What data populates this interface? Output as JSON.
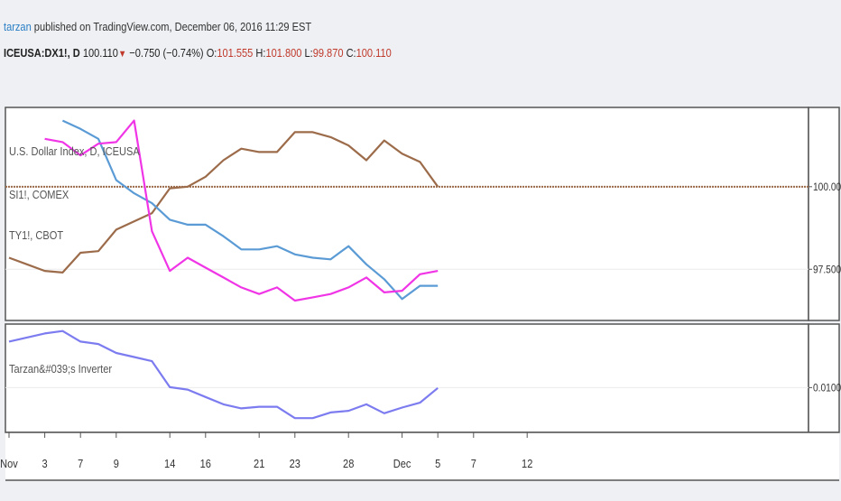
{
  "header": {
    "author": "tarzan",
    "published": "published on TradingView.com, December 06, 2016 11:29 EST",
    "symbol": "ICEUSA:DX1!, D",
    "last": "100.110",
    "change": "−0.750 (−0.74%)",
    "o_label": "O:",
    "o_val": "101.555",
    "h_label": "H:",
    "h_val": "101.800",
    "l_label": "L:",
    "l_val": "99.870",
    "c_label": "C:",
    "c_val": "100.110"
  },
  "legend": {
    "s1": "U.S. Dollar Index, D, ICEUSA",
    "s2": "SI1!, COMEX",
    "s3": "TY1!, CBOT",
    "ind": "Tarzan&#039;s Inverter"
  },
  "colors": {
    "dollar": "#f035e6",
    "silver": "#5b9bd5",
    "treasury": "#9c6b4a",
    "inverter": "#7c7cf0",
    "refline": "#9c6b4a"
  },
  "chart_data": [
    {
      "type": "line",
      "panel": "main",
      "x": [
        "Oct 31",
        "Nov 1",
        "Nov 2",
        "Nov 3",
        "Nov 4",
        "Nov 7",
        "Nov 8",
        "Nov 9",
        "Nov 10",
        "Nov 11",
        "Nov 14",
        "Nov 15",
        "Nov 16",
        "Nov 17",
        "Nov 18",
        "Nov 21",
        "Nov 22",
        "Nov 23",
        "Nov 24",
        "Nov 25",
        "Nov 28",
        "Nov 29",
        "Nov 30",
        "Dec 1",
        "Dec 2",
        "Dec 5"
      ],
      "y_ticks": [
        "100.000",
        "97.500"
      ],
      "ylim": [
        95.95,
        102.4
      ],
      "ref_line": 100.0,
      "series": [
        {
          "name": "U.S. Dollar Index, D, ICEUSA",
          "values": [
            null,
            null,
            101.45,
            101.35,
            100.95,
            101.3,
            101.35,
            102.0,
            98.65,
            97.45,
            97.85,
            97.55,
            97.25,
            96.95,
            96.75,
            96.95,
            96.55,
            96.65,
            96.75,
            96.95,
            97.25,
            96.8,
            96.85,
            97.35,
            97.45,
            null
          ]
        },
        {
          "name": "SI1!, COMEX",
          "values": [
            null,
            null,
            null,
            102.0,
            101.75,
            101.45,
            100.2,
            99.8,
            99.5,
            99.0,
            98.85,
            98.85,
            98.5,
            98.1,
            98.1,
            98.2,
            97.95,
            97.85,
            97.8,
            98.2,
            97.65,
            97.2,
            96.6,
            97.0,
            97.0,
            null
          ]
        },
        {
          "name": "TY1!, CBOT",
          "values": [
            97.85,
            97.65,
            97.45,
            97.4,
            98.0,
            98.05,
            98.7,
            98.95,
            99.2,
            99.95,
            100.0,
            100.3,
            100.8,
            101.15,
            101.05,
            101.05,
            101.65,
            101.65,
            101.5,
            101.25,
            100.8,
            101.4,
            101.0,
            100.75,
            100.0,
            null
          ]
        }
      ]
    },
    {
      "type": "line",
      "panel": "indicator",
      "x": [
        "Oct 31",
        "Nov 1",
        "Nov 2",
        "Nov 3",
        "Nov 4",
        "Nov 7",
        "Nov 8",
        "Nov 9",
        "Nov 10",
        "Nov 11",
        "Nov 14",
        "Nov 15",
        "Nov 16",
        "Nov 17",
        "Nov 18",
        "Nov 21",
        "Nov 22",
        "Nov 23",
        "Nov 24",
        "Nov 25",
        "Nov 28",
        "Nov 29",
        "Nov 30",
        "Dec 1",
        "Dec 2",
        "Dec 5"
      ],
      "y_ticks": [
        "0.0100"
      ],
      "series": [
        {
          "name": "Tarzan&#039;s Inverter",
          "values": [
            0.01565,
            0.01615,
            0.01665,
            0.01695,
            0.01565,
            0.01535,
            0.01425,
            0.01375,
            0.01325,
            0.01005,
            0.00975,
            0.00885,
            0.00795,
            0.00745,
            0.00765,
            0.00765,
            0.00625,
            0.00625,
            0.00695,
            0.00715,
            0.00795,
            0.00685,
            0.00755,
            0.00815,
            0.00995,
            null
          ]
        }
      ]
    }
  ],
  "x_axis": {
    "labels": [
      {
        "text": "Nov",
        "day": 0
      },
      {
        "text": "3",
        "day": 2
      },
      {
        "text": "7",
        "day": 4
      },
      {
        "text": "9",
        "day": 6
      },
      {
        "text": "14",
        "day": 9
      },
      {
        "text": "16",
        "day": 11
      },
      {
        "text": "21",
        "day": 14
      },
      {
        "text": "23",
        "day": 16
      },
      {
        "text": "28",
        "day": 19
      },
      {
        "text": "Dec",
        "day": 22
      },
      {
        "text": "5",
        "day": 24
      },
      {
        "text": "7",
        "day": 26
      },
      {
        "text": "12",
        "day": 29
      }
    ]
  }
}
